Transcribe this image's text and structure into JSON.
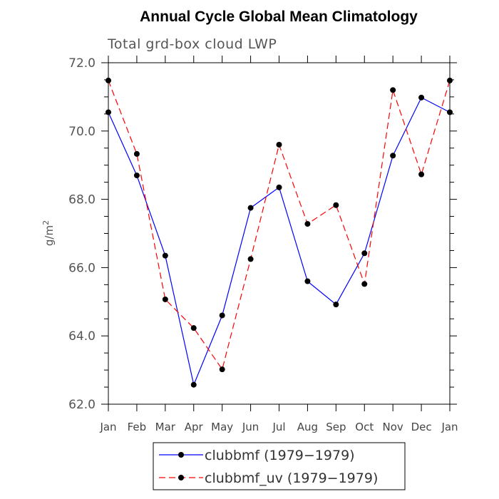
{
  "chart_data": {
    "type": "line",
    "title": "Annual Cycle Global Mean Climatology",
    "subtitle": "Total grd-box cloud LWP",
    "xlabel": "",
    "ylabel": "g/m",
    "ylabel_superscript": "2",
    "categories": [
      "Jan",
      "Feb",
      "Mar",
      "Apr",
      "May",
      "Jun",
      "Jul",
      "Aug",
      "Sep",
      "Oct",
      "Nov",
      "Dec",
      "Jan"
    ],
    "ylim": [
      62.0,
      72.0
    ],
    "yticks": [
      62.0,
      64.0,
      66.0,
      68.0,
      70.0,
      72.0
    ],
    "ytick_labels": [
      "62.0",
      "64.0",
      "66.0",
      "68.0",
      "70.0",
      "72.0"
    ],
    "grid": false,
    "legend_position": "bottom-center",
    "series": [
      {
        "name": "clubbmf (1979−1979)",
        "color": "#0000ff",
        "line_style": "solid",
        "values": [
          70.55,
          68.7,
          66.35,
          62.57,
          64.6,
          67.75,
          68.35,
          65.6,
          64.92,
          66.42,
          69.28,
          70.98,
          70.55
        ]
      },
      {
        "name": "clubbmf_uv (1979−1979)",
        "color": "#ff0000",
        "line_style": "dashed",
        "values": [
          71.48,
          69.33,
          65.07,
          64.23,
          63.02,
          66.25,
          69.6,
          67.28,
          67.83,
          65.52,
          71.2,
          68.73,
          71.48
        ]
      }
    ]
  }
}
